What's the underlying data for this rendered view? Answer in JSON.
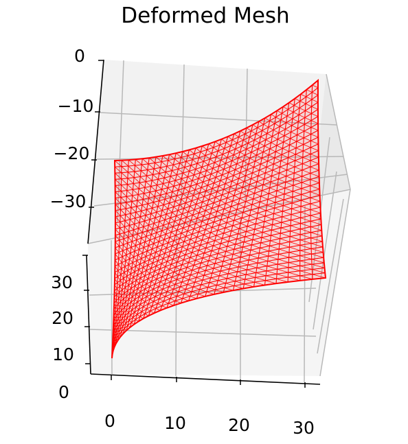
{
  "chart_data": {
    "type": "3d-mesh",
    "title": "Deformed Mesh",
    "x_ticks": [
      "0",
      "10",
      "20",
      "30"
    ],
    "y_ticks": [
      "0",
      "10",
      "20",
      "30"
    ],
    "z_ticks": [
      "0",
      "−10",
      "−20",
      "−30"
    ],
    "xlim": [
      0,
      32
    ],
    "ylim": [
      0,
      32
    ],
    "zlim": [
      -37,
      0
    ],
    "grid": true,
    "mesh": {
      "color": "#ff0000",
      "corner_peak_near": [
        0,
        0
      ],
      "corner_peak_far": [
        32,
        32
      ],
      "divisions": 32
    }
  }
}
